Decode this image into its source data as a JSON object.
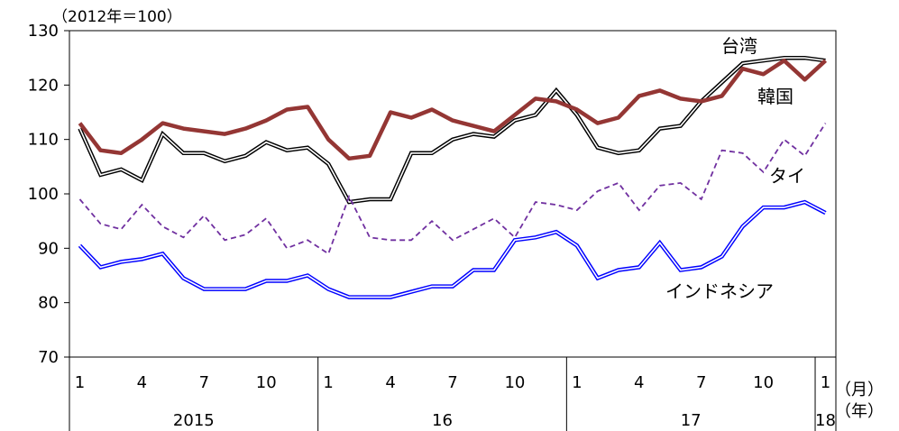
{
  "chart_data": {
    "type": "line",
    "unit_label": "（2012年＝100）",
    "x_unit_month": "（月）",
    "x_unit_year": "（年）",
    "ylim": [
      70,
      130
    ],
    "yticks": [
      "70",
      "80",
      "90",
      "100",
      "110",
      "120",
      "130"
    ],
    "month_ticks": [
      "1",
      "4",
      "7",
      "10",
      "1",
      "4",
      "7",
      "10",
      "1",
      "4",
      "7",
      "10",
      "1"
    ],
    "years": [
      "2015",
      "16",
      "17",
      "18"
    ],
    "x": [
      "2015-01",
      "2015-02",
      "2015-03",
      "2015-04",
      "2015-05",
      "2015-06",
      "2015-07",
      "2015-08",
      "2015-09",
      "2015-10",
      "2015-11",
      "2015-12",
      "2016-01",
      "2016-02",
      "2016-03",
      "2016-04",
      "2016-05",
      "2016-06",
      "2016-07",
      "2016-08",
      "2016-09",
      "2016-10",
      "2016-11",
      "2016-12",
      "2017-01",
      "2017-02",
      "2017-03",
      "2017-04",
      "2017-05",
      "2017-06",
      "2017-07",
      "2017-08",
      "2017-09",
      "2017-10",
      "2017-11",
      "2017-12",
      "2018-01"
    ],
    "grid": false,
    "series": [
      {
        "name": "台湾",
        "color": "#000000",
        "style": "double",
        "values": [
          112,
          103.5,
          104.5,
          102.5,
          111,
          107.5,
          107.5,
          106,
          107,
          109.5,
          108,
          108.5,
          105.5,
          98.5,
          99,
          99,
          107.5,
          107.5,
          110,
          111,
          110.5,
          113.5,
          114.5,
          119,
          114.5,
          108.5,
          107.5,
          108,
          112,
          112.5,
          117,
          120.5,
          124,
          124.5,
          125,
          125,
          124.5
        ]
      },
      {
        "name": "韓国",
        "color": "#943634",
        "style": "thick",
        "values": [
          113,
          108,
          107.5,
          110,
          113,
          112,
          111.5,
          111,
          112,
          113.5,
          115.5,
          116,
          110,
          106.5,
          107,
          115,
          114,
          115.5,
          113.5,
          112.5,
          111.5,
          114.5,
          117.5,
          117,
          115.5,
          113,
          114,
          118,
          119,
          117.5,
          117,
          118,
          123,
          122,
          124.5,
          121,
          124.5
        ]
      },
      {
        "name": "タイ",
        "color": "#7030a0",
        "style": "dashed",
        "values": [
          99,
          94.5,
          93.5,
          98,
          94,
          92,
          96,
          91.5,
          92.5,
          95.5,
          90,
          91.5,
          89,
          99.5,
          92,
          91.5,
          91.5,
          95,
          91.5,
          93.5,
          95.5,
          92,
          98.5,
          98,
          97,
          100.5,
          102,
          97,
          101.5,
          102,
          99,
          108,
          107.5,
          104,
          110,
          107,
          113
        ]
      },
      {
        "name": "インドネシア",
        "color": "#0000ff",
        "style": "double",
        "values": [
          90.5,
          86.5,
          87.5,
          88,
          89,
          84.5,
          82.5,
          82.5,
          82.5,
          84,
          84,
          85,
          82.5,
          81,
          81,
          81,
          82,
          83,
          83,
          86,
          86,
          91.5,
          92,
          93,
          90.5,
          84.5,
          86,
          86.5,
          91,
          86,
          86.5,
          88.5,
          94,
          97.5,
          97.5,
          98.5,
          96.5
        ]
      }
    ]
  }
}
